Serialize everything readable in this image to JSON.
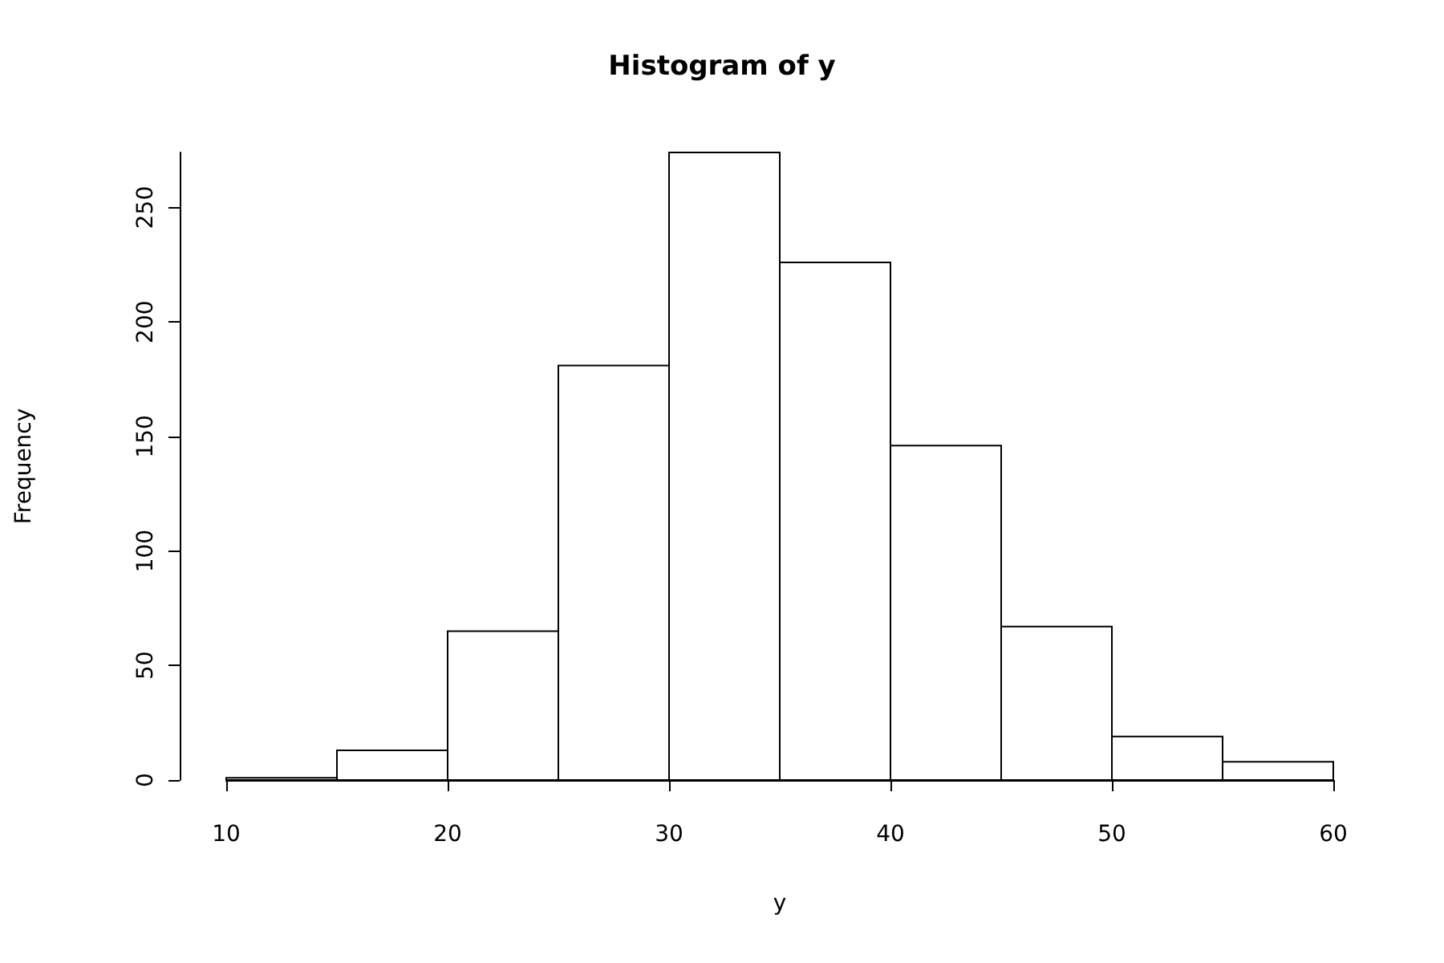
{
  "chart_data": {
    "type": "histogram",
    "title": "Histogram of y",
    "xlabel": "y",
    "ylabel": "Frequency",
    "bins": [
      10,
      15,
      20,
      25,
      30,
      35,
      40,
      45,
      50,
      55,
      60
    ],
    "values": [
      1,
      13,
      65,
      181,
      274,
      226,
      146,
      67,
      19,
      8
    ],
    "color": "#ffffff",
    "xlim": [
      10,
      60
    ],
    "xticks": [
      10,
      20,
      30,
      40,
      50,
      60
    ],
    "ylim": [
      0,
      274
    ],
    "yticks": [
      0,
      50,
      100,
      150,
      200,
      250
    ]
  }
}
